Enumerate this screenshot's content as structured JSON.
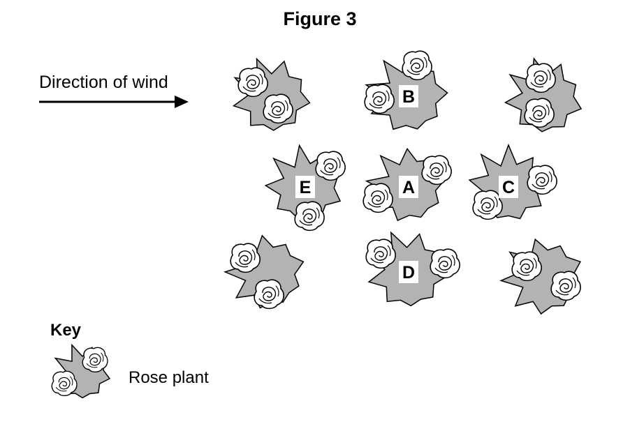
{
  "figure": {
    "title": "Figure 3",
    "wind_label": "Direction of wind",
    "key_title": "Key",
    "key_label": "Rose plant",
    "colors": {
      "leaf_fill": "#b3b3b3",
      "outline": "#000000",
      "rose_fill": "#ffffff"
    },
    "plants": [
      {
        "id": "top-left",
        "label": ""
      },
      {
        "id": "B",
        "label": "B"
      },
      {
        "id": "top-right",
        "label": ""
      },
      {
        "id": "E",
        "label": "E"
      },
      {
        "id": "A",
        "label": "A"
      },
      {
        "id": "C",
        "label": "C"
      },
      {
        "id": "bottom-left",
        "label": ""
      },
      {
        "id": "D",
        "label": "D"
      },
      {
        "id": "bottom-right",
        "label": ""
      }
    ]
  }
}
